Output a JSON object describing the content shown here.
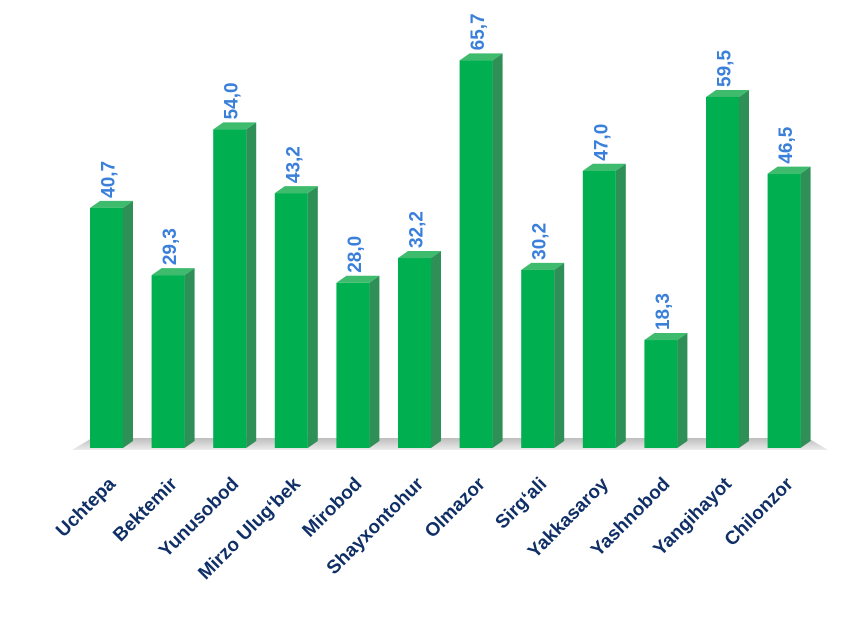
{
  "chart_data": {
    "type": "bar",
    "categories": [
      "Uchtepa",
      "Bektemir",
      "Yunusobod",
      "Mirzo Ulug‘bek",
      "Mirobod",
      "Shayxontohur",
      "Olmazor",
      "Sirg‘ali",
      "Yakkasaroy",
      "Yashnobod",
      "Yangihayot",
      "Chilonzor"
    ],
    "values": [
      40.7,
      29.3,
      54.0,
      43.2,
      28.0,
      32.2,
      65.7,
      30.2,
      47.0,
      18.3,
      59.5,
      46.5
    ],
    "value_labels": [
      "40,7",
      "29,3",
      "54,0",
      "43,2",
      "28,0",
      "32,2",
      "65,7",
      "30,2",
      "47,0",
      "18,3",
      "59,5",
      "46,5"
    ],
    "title": "",
    "xlabel": "",
    "ylabel": "",
    "ylim": [
      0,
      70
    ],
    "grid": false,
    "style": "3d-columns"
  },
  "colors": {
    "bar_front": "#00b050",
    "bar_side": "#2e8f57",
    "bar_top": "#3fbb6d",
    "value_label": "#3a7fd9",
    "category_label": "#0f2f66",
    "floor": "#c8c8c8"
  }
}
